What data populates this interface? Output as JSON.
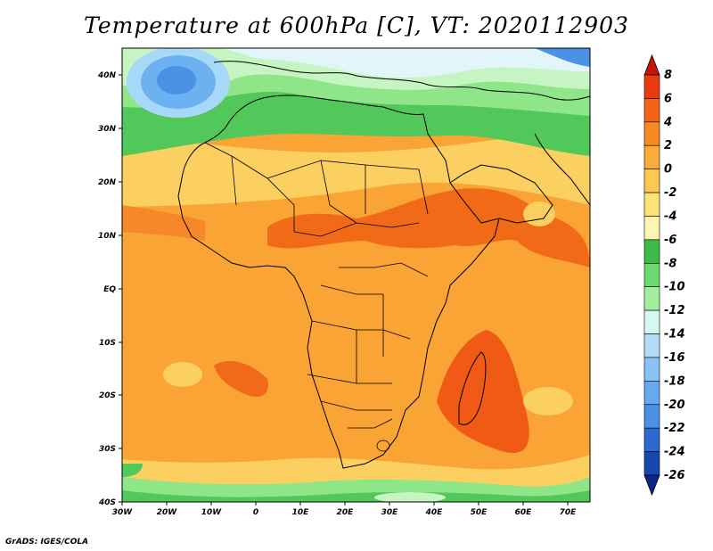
{
  "title": "Temperature at 600hPa [C], VT: 2020112903",
  "credit": "GrADS: IGES/COLA",
  "colors": {
    "dark_orange": "#f05a14",
    "orange": "#f79a28",
    "light_orange": "#f9b040",
    "yellow_orange": "#fbd060",
    "pale_yellow": "#fdf0a8",
    "green": "#52c85a",
    "light_green": "#8ee688",
    "pale_green": "#c6f4c2",
    "pale_cyan": "#e2f6fa",
    "light_blue": "#a8d8f8",
    "blue": "#6cb2f0",
    "mid_blue": "#4a92e4"
  },
  "chart_data": {
    "type": "heatmap",
    "variable": "Temperature at 600hPa",
    "units": "C",
    "valid_time": "2020112903",
    "lon_range": [
      -30,
      75
    ],
    "lat_range": [
      -40,
      45
    ],
    "x_ticks": [
      "30W",
      "20W",
      "10W",
      "0",
      "10E",
      "20E",
      "30E",
      "40E",
      "50E",
      "60E",
      "70E"
    ],
    "y_ticks": [
      "40N",
      "30N",
      "20N",
      "10N",
      "EQ",
      "10S",
      "20S",
      "30S",
      "40S"
    ],
    "colorbar": {
      "labels": [
        "8",
        "6",
        "4",
        "2",
        "0",
        "-2",
        "-4",
        "-6",
        "-8",
        "-10",
        "-12",
        "-14",
        "-16",
        "-18",
        "-20",
        "-22",
        "-24",
        "-26"
      ],
      "colors": [
        "#c81408",
        "#e83c10",
        "#f46418",
        "#f78a20",
        "#f9ac38",
        "#fbc850",
        "#fde278",
        "#fdf6b0",
        "#3cbc46",
        "#6cd870",
        "#a2ee9e",
        "#d6f8f2",
        "#b0dcf8",
        "#8ac4f4",
        "#66aaee",
        "#4a90e4",
        "#2c6ad0",
        "#1846b0",
        "#0c2688"
      ]
    }
  }
}
